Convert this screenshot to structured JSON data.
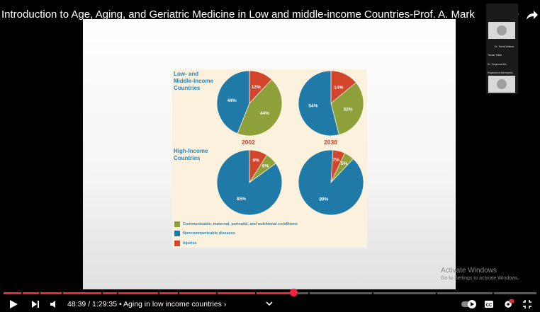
{
  "video": {
    "title": "Introduction to Age, Aging, and Geriatric Medicine in Low and middle-income Countries-Prof. A. Mark",
    "time_current": "48:39",
    "time_total": "1:29:35",
    "chapter": "Aging in low income countries",
    "progress_fraction": 0.545
  },
  "slide": {
    "row_labels": [
      "Low- and\nMiddle-Income\nCountries",
      "High-Income\nCountries"
    ],
    "years": [
      "2002",
      "2030"
    ],
    "pies": [
      {
        "group": "Low- and Middle-Income Countries",
        "year": "2002",
        "injuries": 12,
        "communicable": 44,
        "noncommunicable": 44
      },
      {
        "group": "Low- and Middle-Income Countries",
        "year": "2030",
        "injuries": 14,
        "communicable": 32,
        "noncommunicable": 54
      },
      {
        "group": "High-Income Countries",
        "year": "2002",
        "injuries": 9,
        "communicable": 6,
        "noncommunicable": 85
      },
      {
        "group": "High-Income Countries",
        "year": "2030",
        "injuries": 7,
        "communicable": 5,
        "noncommunicable": 89
      }
    ],
    "legend": [
      {
        "label": "Communicable, maternal, perinatal, and nutritional conditions",
        "color": "#8da03a"
      },
      {
        "label": "Noncommunicable diseases",
        "color": "#1f7aa8"
      },
      {
        "label": "Injuries",
        "color": "#d4462c"
      }
    ]
  },
  "participants": {
    "names": [
      "Dr. Tsinat Walkaa",
      "Tsedal Teklai",
      "Dr. Tsegereal Ale..",
      "Engdawork Alemayehu"
    ]
  },
  "watermark": {
    "line1": "Activate Windows",
    "line2": "Go to Settings to activate Windows."
  },
  "colors": {
    "accent": "#f0243e",
    "injuries": "#d4462c",
    "communicable": "#8da03a",
    "noncommunicable": "#1f7aa8"
  },
  "icons": [
    "play-icon",
    "next-icon",
    "volume-icon",
    "chevron-down-icon",
    "autoplay-toggle-icon",
    "captions-icon",
    "settings-icon",
    "exit-fullscreen-icon",
    "watch-later-icon",
    "share-icon"
  ]
}
